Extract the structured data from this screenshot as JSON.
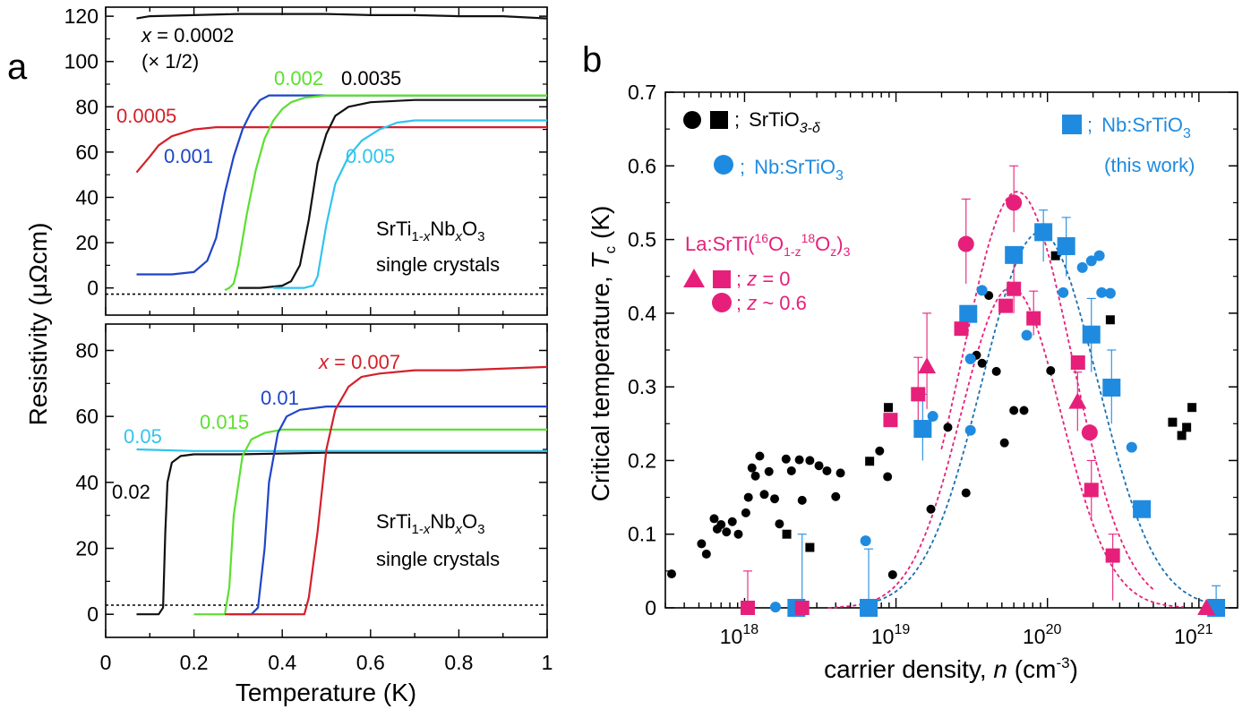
{
  "panels": {
    "a": "a",
    "b": "b"
  },
  "colors": {
    "black": "#111111",
    "red": "#d4202a",
    "blue": "#1f45c8",
    "green": "#5be030",
    "cyan": "#30c4ee",
    "magenta": "#e6207a",
    "nb_blue": "#1f8be0",
    "fit_blue": "#1a6fb0"
  },
  "chart_data": [
    {
      "id": "a_top",
      "type": "line",
      "xlim": [
        0,
        1
      ],
      "ylim": [
        -12,
        124
      ],
      "yticks": [
        "0",
        "20",
        "40",
        "60",
        "80",
        "100",
        "120"
      ],
      "annotations": {
        "x_label_italic": "x",
        "x_value": " = 0.0002",
        "x_scale": "(× 1/2)",
        "lbl_0005": "0.0005",
        "lbl_001": "0.001",
        "lbl_002": "0.002",
        "lbl_0035": "0.0035",
        "lbl_005": "0.005",
        "sample_line1": [
          "SrTi",
          "1-",
          "x",
          "Nb",
          "x",
          "O",
          "3"
        ],
        "sample_line2": "single crystals"
      },
      "series": [
        {
          "label": "x = 0.0002",
          "color": "#111111",
          "x": [
            0.07,
            0.1,
            0.2,
            0.3,
            0.4,
            0.5,
            0.6,
            0.7,
            0.8,
            0.9,
            1.0
          ],
          "y": [
            119,
            120,
            120.5,
            121,
            121,
            121,
            120.5,
            120.5,
            120,
            120,
            119
          ]
        },
        {
          "label": "0.0005",
          "color": "#d4202a",
          "x": [
            0.07,
            0.1,
            0.12,
            0.15,
            0.2,
            0.25,
            0.3,
            0.4,
            0.5,
            0.6,
            0.8,
            1.0
          ],
          "y": [
            51,
            58,
            63,
            67,
            70,
            71,
            71,
            71,
            71,
            71,
            71,
            71
          ]
        },
        {
          "label": "0.001",
          "color": "#1f45c8",
          "x": [
            0.07,
            0.1,
            0.15,
            0.2,
            0.23,
            0.25,
            0.27,
            0.29,
            0.31,
            0.33,
            0.35,
            0.37,
            0.4,
            0.5,
            0.6,
            0.8,
            1.0
          ],
          "y": [
            6,
            6,
            6,
            7,
            12,
            22,
            42,
            58,
            70,
            78,
            83,
            85,
            85,
            85,
            85,
            85,
            85
          ]
        },
        {
          "label": "0.002",
          "color": "#5be030",
          "x": [
            0.27,
            0.28,
            0.29,
            0.3,
            0.32,
            0.34,
            0.36,
            0.38,
            0.4,
            0.42,
            0.45,
            0.5,
            0.6,
            0.8,
            1.0
          ],
          "y": [
            -1,
            0,
            2,
            10,
            33,
            52,
            66,
            74,
            79,
            82,
            84,
            85,
            85,
            85,
            85
          ]
        },
        {
          "label": "0.0035",
          "color": "#111111",
          "x": [
            0.3,
            0.35,
            0.4,
            0.42,
            0.44,
            0.46,
            0.48,
            0.5,
            0.52,
            0.55,
            0.6,
            0.7,
            0.8,
            1.0
          ],
          "y": [
            0,
            0,
            1,
            3,
            10,
            30,
            55,
            68,
            76,
            80,
            82,
            83,
            83,
            83
          ]
        },
        {
          "label": "0.005",
          "color": "#30c4ee",
          "x": [
            0.38,
            0.42,
            0.45,
            0.47,
            0.48,
            0.5,
            0.52,
            0.55,
            0.58,
            0.62,
            0.66,
            0.7,
            0.8,
            1.0
          ],
          "y": [
            0,
            0,
            0,
            1,
            5,
            28,
            46,
            58,
            65,
            70,
            73,
            74,
            74,
            74
          ]
        }
      ]
    },
    {
      "id": "a_bottom",
      "type": "line",
      "xlim": [
        0,
        1
      ],
      "ylim": [
        -7,
        88
      ],
      "xticks": [
        "0",
        "0.2",
        "0.4",
        "0.6",
        "0.8",
        "1"
      ],
      "yticks": [
        "0",
        "20",
        "40",
        "60",
        "80"
      ],
      "xlabel": "Temperature (K)",
      "ylabel": "Resistivity (μΩcm)",
      "annotations": {
        "x_label_italic": "x",
        "x_value": " = 0.007",
        "lbl_001": "0.01",
        "lbl_0015": "0.015",
        "lbl_005": "0.05",
        "lbl_002": "0.02",
        "sample_line1": [
          "SrTi",
          "1-",
          "x",
          "Nb",
          "x",
          "O",
          "3"
        ],
        "sample_line2": "single crystals"
      },
      "series": [
        {
          "label": "0.02",
          "color": "#111111",
          "x": [
            0.07,
            0.12,
            0.13,
            0.135,
            0.14,
            0.15,
            0.17,
            0.2,
            0.3,
            0.5,
            1.0
          ],
          "y": [
            0,
            0,
            2,
            25,
            40,
            46,
            48,
            48.5,
            48.5,
            49,
            49
          ]
        },
        {
          "label": "0.05",
          "color": "#30c4ee",
          "x": [
            0.07,
            0.2,
            0.4,
            0.6,
            0.8,
            1.0
          ],
          "y": [
            50,
            49.5,
            49.5,
            49.5,
            49.5,
            49.5
          ]
        },
        {
          "label": "0.015",
          "color": "#5be030",
          "x": [
            0.2,
            0.25,
            0.27,
            0.28,
            0.29,
            0.31,
            0.33,
            0.36,
            0.4,
            0.5,
            0.7,
            1.0
          ],
          "y": [
            0,
            0,
            0,
            8,
            30,
            48,
            53,
            55,
            56,
            56,
            56,
            56
          ]
        },
        {
          "label": "0.01",
          "color": "#1f45c8",
          "x": [
            0.28,
            0.33,
            0.345,
            0.36,
            0.37,
            0.39,
            0.41,
            0.44,
            0.5,
            0.6,
            0.8,
            1.0
          ],
          "y": [
            0,
            0,
            2,
            20,
            40,
            55,
            60,
            62,
            63,
            63,
            63,
            63
          ]
        },
        {
          "label": "x = 0.007",
          "color": "#d4202a",
          "x": [
            0.27,
            0.4,
            0.45,
            0.46,
            0.48,
            0.5,
            0.52,
            0.55,
            0.58,
            0.62,
            0.7,
            0.8,
            1.0
          ],
          "y": [
            0,
            0,
            0,
            5,
            25,
            50,
            62,
            69,
            72,
            73,
            74,
            74,
            75
          ]
        }
      ]
    },
    {
      "id": "b",
      "type": "scatter",
      "xscale": "log",
      "xlim": [
        3e+17,
        1.8e+21
      ],
      "ylim": [
        0,
        0.7
      ],
      "xticks": [
        {
          "base": "10",
          "exp": "18"
        },
        {
          "base": "10",
          "exp": "19"
        },
        {
          "base": "10",
          "exp": "20"
        },
        {
          "base": "10",
          "exp": "21"
        }
      ],
      "yticks": [
        "0",
        "0.1",
        "0.2",
        "0.3",
        "0.4",
        "0.5",
        "0.6",
        "0.7"
      ],
      "xlabel": {
        "pre": "carrier density, ",
        "var": "n",
        "unit": " (cm",
        "exp": "-3",
        "close": ")"
      },
      "ylabel": {
        "pre": "Critical temperature, ",
        "var": "T",
        "sub": "c",
        "unit": " (K)"
      },
      "legend": {
        "srtio": {
          "sep": ";",
          "text": "SrTiO",
          "sub": "3-δ"
        },
        "nb": {
          "sep": ";",
          "text": "Nb:SrTiO",
          "sub": "3"
        },
        "thiswork": {
          "sep": ";",
          "text": "Nb:SrTiO",
          "sub": "3",
          "line2": "(this work)"
        },
        "la": {
          "t1": "La:SrTi(",
          "s1": "16",
          "t2": "O",
          "b1": "1-z",
          "s2": "18",
          "t3": "O",
          "b2": "z",
          "t4": ")",
          "b3": "3"
        },
        "z0": {
          "sep": "; ",
          "var": "z",
          "val": " = 0"
        },
        "z06": {
          "sep": "; ",
          "var": "z",
          "val": " ~ 0.6"
        }
      },
      "series": [
        {
          "name": "SrTiO3-δ (circles)",
          "marker": "circle",
          "color": "#000000",
          "x": [
            3.3e+17,
            5.2e+17,
            5.6e+17,
            6.3e+17,
            6.6e+17,
            7e+17,
            7.6e+17,
            8.3e+17,
            9.1e+17,
            1.02e+18,
            1.06e+18,
            1.12e+18,
            1.18e+18,
            1.26e+18,
            1.35e+18,
            1.45e+18,
            1.58e+18,
            1.7e+18,
            1.88e+18,
            2.04e+18,
            2.3e+18,
            2.4e+18,
            2.7e+18,
            3.1e+18,
            3.5e+18,
            4e+18,
            4.3e+18,
            7.8e+18,
            8.8e+18,
            9.5e+18,
            1.7e+19,
            2.2e+19,
            2.9e+19,
            3.4e+19,
            3.7e+19,
            4.1e+19,
            4.6e+19,
            5.2e+19,
            6e+19,
            7e+19,
            1.05e+20
          ],
          "y": [
            0.046,
            0.087,
            0.073,
            0.121,
            0.107,
            0.113,
            0.103,
            0.117,
            0.1,
            0.129,
            0.15,
            0.19,
            0.179,
            0.206,
            0.154,
            0.185,
            0.148,
            0.114,
            0.202,
            0.186,
            0.201,
            0.146,
            0.2,
            0.193,
            0.186,
            0.151,
            0.183,
            0.213,
            0.178,
            0.045,
            0.134,
            0.245,
            0.156,
            0.343,
            0.332,
            0.424,
            0.321,
            0.224,
            0.268,
            0.268,
            0.322
          ]
        },
        {
          "name": "SrTiO3-δ (squares)",
          "marker": "square",
          "color": "#000000",
          "x": [
            1.9e+18,
            2.7e+18,
            6.7e+18,
            8.9e+18,
            1.13e+20,
            2.6e+20,
            6.7e+20,
            7.7e+20,
            8.3e+20,
            9e+20
          ],
          "y": [
            0.1,
            0.082,
            0.199,
            0.272,
            0.478,
            0.391,
            0.252,
            0.234,
            0.245,
            0.272
          ]
        },
        {
          "name": "Nb:SrTiO3 (circles)",
          "marker": "circle",
          "color": "#1f8be0",
          "x": [
            1.6e+18,
            6.3e+18,
            1.44e+19,
            1.75e+19,
            3.1e+19,
            3.1e+19,
            3.7e+19,
            7.3e+19,
            1.27e+20,
            1.7e+20,
            1.95e+20,
            2.2e+20,
            2.28e+20,
            2.6e+20,
            3.6e+20
          ],
          "y": [
            0.001,
            0.091,
            0.245,
            0.26,
            0.338,
            0.241,
            0.431,
            0.37,
            0.428,
            0.462,
            0.471,
            0.478,
            0.428,
            0.427,
            0.218
          ]
        },
        {
          "name": "Nb:SrTiO3 (this work)",
          "marker": "square",
          "color": "#1f8be0",
          "x": [
            2.2e+18,
            6.6e+18,
            1.5e+19,
            3e+19,
            6e+19,
            9.4e+19,
            1.33e+20,
            1.95e+20,
            2.65e+20,
            4.2e+20,
            1.3e+21
          ],
          "y": [
            0.0,
            0.0,
            0.243,
            0.399,
            0.479,
            0.51,
            0.491,
            0.371,
            0.299,
            0.134,
            0.0
          ]
        },
        {
          "name": "La:SrTiO3 z=0 (triangles)",
          "marker": "triangle",
          "color": "#e6207a",
          "x": [
            1.6e+19,
            1.58e+20,
            1.12e+21
          ],
          "y": [
            0.328,
            0.28,
            0.0
          ]
        },
        {
          "name": "La:SrTiO3 z=0 (squares)",
          "marker": "square",
          "color": "#e6207a",
          "x": [
            1.05e+18,
            2.4e+18,
            9.2e+18,
            1.4e+19,
            2.7e+19,
            5.3e+19,
            6e+19,
            8.1e+19,
            1.59e+20,
            1.95e+20,
            2.7e+20
          ],
          "y": [
            0.0,
            0.0,
            0.255,
            0.29,
            0.379,
            0.41,
            0.433,
            0.393,
            0.333,
            0.16,
            0.071
          ]
        },
        {
          "name": "La:SrTiO3 z~0.6 (circles)",
          "marker": "circle",
          "color": "#e6207a",
          "x": [
            2.9e+19,
            6e+19,
            1.9e+20
          ],
          "y": [
            0.494,
            0.55,
            0.238
          ]
        }
      ]
    }
  ]
}
